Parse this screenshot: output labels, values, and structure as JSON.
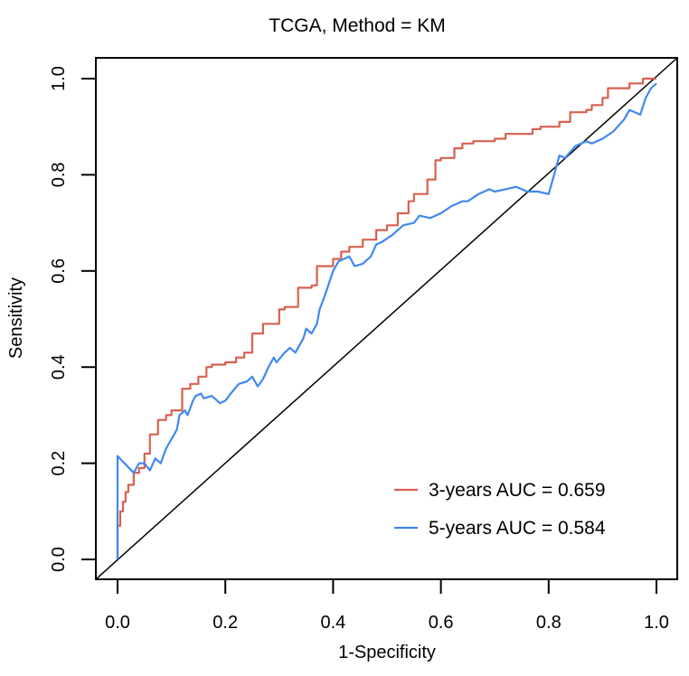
{
  "chart_data": {
    "type": "line",
    "title": "TCGA, Method = KM",
    "xlabel": "1-Specificity",
    "ylabel": "Sensitivity",
    "xlim": [
      0,
      1
    ],
    "ylim": [
      0,
      1
    ],
    "xticks": [
      "0.0",
      "0.2",
      "0.4",
      "0.6",
      "0.8",
      "1.0"
    ],
    "xtick_values": [
      0,
      0.2,
      0.4,
      0.6,
      0.8,
      1.0
    ],
    "yticks": [
      "0.0",
      "0.2",
      "0.4",
      "0.6",
      "0.8",
      "1.0"
    ],
    "ytick_values": [
      0,
      0.2,
      0.4,
      0.6,
      0.8,
      1.0
    ],
    "grid": false,
    "legend_position": "bottom-right",
    "reference_line": {
      "from": [
        0,
        0
      ],
      "to": [
        1,
        1
      ],
      "color": "#000000"
    },
    "series": [
      {
        "name": "3-years AUC =  0.659",
        "color": "#D9604F",
        "x": [
          0.0,
          0.0,
          0.005,
          0.005,
          0.01,
          0.01,
          0.015,
          0.015,
          0.02,
          0.02,
          0.03,
          0.03,
          0.04,
          0.04,
          0.05,
          0.05,
          0.06,
          0.06,
          0.07,
          0.075,
          0.075,
          0.09,
          0.09,
          0.1,
          0.1,
          0.12,
          0.12,
          0.135,
          0.135,
          0.15,
          0.15,
          0.165,
          0.165,
          0.175,
          0.175,
          0.2,
          0.2,
          0.22,
          0.22,
          0.235,
          0.235,
          0.25,
          0.25,
          0.27,
          0.27,
          0.3,
          0.3,
          0.31,
          0.31,
          0.335,
          0.335,
          0.36,
          0.36,
          0.37,
          0.37,
          0.4,
          0.4,
          0.415,
          0.415,
          0.43,
          0.43,
          0.455,
          0.455,
          0.48,
          0.48,
          0.5,
          0.5,
          0.52,
          0.52,
          0.54,
          0.54,
          0.55,
          0.55,
          0.575,
          0.575,
          0.59,
          0.59,
          0.6,
          0.6,
          0.625,
          0.625,
          0.64,
          0.64,
          0.66,
          0.66,
          0.7,
          0.7,
          0.72,
          0.72,
          0.77,
          0.77,
          0.785,
          0.785,
          0.82,
          0.82,
          0.84,
          0.84,
          0.87,
          0.87,
          0.88,
          0.88,
          0.9,
          0.9,
          0.91,
          0.91,
          0.95,
          0.95,
          0.975,
          0.975,
          1.0
        ],
        "y": [
          0.0,
          0.07,
          0.07,
          0.1,
          0.1,
          0.12,
          0.12,
          0.14,
          0.14,
          0.155,
          0.155,
          0.18,
          0.18,
          0.19,
          0.19,
          0.22,
          0.22,
          0.26,
          0.26,
          0.26,
          0.29,
          0.29,
          0.3,
          0.3,
          0.31,
          0.31,
          0.355,
          0.355,
          0.365,
          0.365,
          0.38,
          0.38,
          0.4,
          0.4,
          0.405,
          0.405,
          0.41,
          0.41,
          0.42,
          0.42,
          0.43,
          0.43,
          0.47,
          0.47,
          0.49,
          0.49,
          0.52,
          0.52,
          0.525,
          0.525,
          0.565,
          0.565,
          0.57,
          0.57,
          0.61,
          0.61,
          0.625,
          0.625,
          0.64,
          0.64,
          0.65,
          0.65,
          0.665,
          0.665,
          0.685,
          0.685,
          0.695,
          0.695,
          0.72,
          0.72,
          0.745,
          0.745,
          0.76,
          0.76,
          0.79,
          0.79,
          0.83,
          0.83,
          0.835,
          0.835,
          0.855,
          0.855,
          0.865,
          0.865,
          0.87,
          0.87,
          0.875,
          0.875,
          0.885,
          0.885,
          0.895,
          0.895,
          0.9,
          0.9,
          0.91,
          0.91,
          0.93,
          0.93,
          0.935,
          0.935,
          0.945,
          0.945,
          0.96,
          0.96,
          0.98,
          0.98,
          0.99,
          0.99,
          1.0,
          1.0
        ]
      },
      {
        "name": "5-years AUC =  0.584",
        "color": "#3F88F2",
        "x": [
          0.0,
          0.0,
          0.03,
          0.04,
          0.05,
          0.06,
          0.07,
          0.08,
          0.09,
          0.1,
          0.11,
          0.115,
          0.125,
          0.13,
          0.14,
          0.145,
          0.155,
          0.16,
          0.175,
          0.19,
          0.2,
          0.21,
          0.225,
          0.24,
          0.25,
          0.26,
          0.27,
          0.28,
          0.29,
          0.295,
          0.31,
          0.32,
          0.33,
          0.345,
          0.35,
          0.36,
          0.37,
          0.375,
          0.385,
          0.4,
          0.41,
          0.43,
          0.44,
          0.455,
          0.47,
          0.48,
          0.49,
          0.51,
          0.53,
          0.55,
          0.56,
          0.58,
          0.6,
          0.62,
          0.64,
          0.65,
          0.67,
          0.69,
          0.7,
          0.72,
          0.74,
          0.76,
          0.78,
          0.8,
          0.81,
          0.815,
          0.82,
          0.83,
          0.85,
          0.87,
          0.88,
          0.9,
          0.92,
          0.94,
          0.95,
          0.97,
          0.98,
          0.99,
          1.0
        ],
        "y": [
          0.0,
          0.215,
          0.18,
          0.2,
          0.2,
          0.185,
          0.21,
          0.2,
          0.23,
          0.25,
          0.27,
          0.3,
          0.31,
          0.3,
          0.33,
          0.34,
          0.345,
          0.335,
          0.34,
          0.325,
          0.33,
          0.345,
          0.365,
          0.37,
          0.38,
          0.36,
          0.375,
          0.4,
          0.42,
          0.41,
          0.43,
          0.44,
          0.43,
          0.46,
          0.48,
          0.47,
          0.49,
          0.52,
          0.55,
          0.6,
          0.62,
          0.63,
          0.61,
          0.615,
          0.63,
          0.655,
          0.66,
          0.675,
          0.695,
          0.7,
          0.715,
          0.71,
          0.72,
          0.735,
          0.745,
          0.745,
          0.76,
          0.77,
          0.765,
          0.77,
          0.775,
          0.765,
          0.765,
          0.76,
          0.8,
          0.82,
          0.84,
          0.835,
          0.86,
          0.87,
          0.865,
          0.875,
          0.89,
          0.915,
          0.935,
          0.925,
          0.96,
          0.98,
          0.99
        ]
      }
    ]
  }
}
